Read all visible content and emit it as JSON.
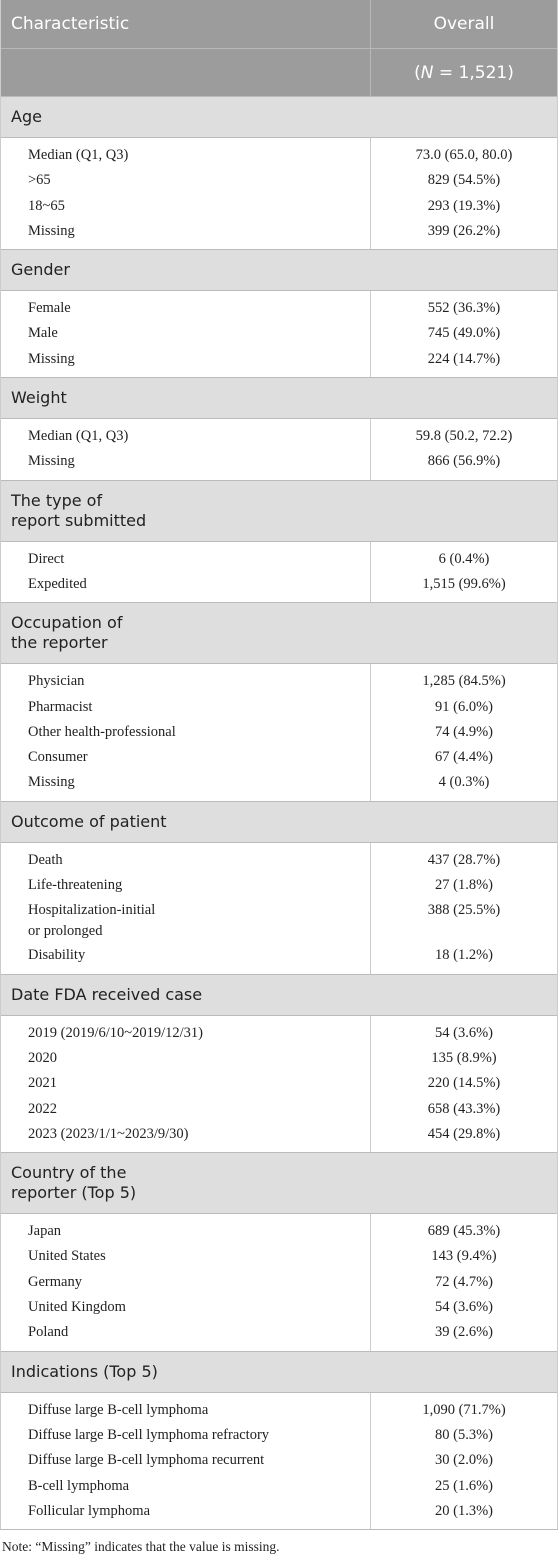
{
  "header": {
    "characteristic": "Characteristic",
    "overall": "Overall",
    "n_parts": [
      "(",
      "N",
      " = 1,521)"
    ]
  },
  "sections": [
    {
      "title": [
        "Age"
      ],
      "rows": [
        [
          "Median (Q1, Q3)",
          "73.0 (65.0, 80.0)"
        ],
        [
          ">65",
          "829 (54.5%)"
        ],
        [
          "18~65",
          "293 (19.3%)"
        ],
        [
          "Missing",
          "399 (26.2%)"
        ]
      ]
    },
    {
      "title": [
        "Gender"
      ],
      "rows": [
        [
          "Female",
          "552 (36.3%)"
        ],
        [
          "Male",
          "745 (49.0%)"
        ],
        [
          "Missing",
          "224 (14.7%)"
        ]
      ]
    },
    {
      "title": [
        "Weight"
      ],
      "rows": [
        [
          "Median (Q1, Q3)",
          "59.8 (50.2, 72.2)"
        ],
        [
          "Missing",
          "866 (56.9%)"
        ]
      ]
    },
    {
      "title": [
        "The type of",
        "report submitted"
      ],
      "rows": [
        [
          "Direct",
          "6 (0.4%)"
        ],
        [
          "Expedited",
          "1,515 (99.6%)"
        ]
      ]
    },
    {
      "title": [
        "Occupation of",
        "the reporter"
      ],
      "rows": [
        [
          "Physician",
          "1,285 (84.5%)"
        ],
        [
          "Pharmacist",
          "91 (6.0%)"
        ],
        [
          "Other health-professional",
          "74 (4.9%)"
        ],
        [
          "Consumer",
          "67 (4.4%)"
        ],
        [
          "Missing",
          "4 (0.3%)"
        ]
      ]
    },
    {
      "title": [
        "Outcome of patient"
      ],
      "rows": [
        [
          "Death",
          "437 (28.7%)"
        ],
        [
          "Life-threatening",
          "27 (1.8%)"
        ],
        [
          [
            "Hospitalization-initial",
            "or prolonged"
          ],
          "388 (25.5%)"
        ],
        [
          "Disability",
          "18 (1.2%)"
        ]
      ]
    },
    {
      "title": [
        "Date FDA received case"
      ],
      "rows": [
        [
          "2019 (2019/6/10~2019/12/31)",
          "54 (3.6%)"
        ],
        [
          "2020",
          "135 (8.9%)"
        ],
        [
          "2021",
          "220 (14.5%)"
        ],
        [
          "2022",
          "658 (43.3%)"
        ],
        [
          "2023 (2023/1/1~2023/9/30)",
          "454 (29.8%)"
        ]
      ]
    },
    {
      "title": [
        "Country of the",
        "reporter (Top 5)"
      ],
      "rows": [
        [
          "Japan",
          "689 (45.3%)"
        ],
        [
          "United States",
          "143 (9.4%)"
        ],
        [
          "Germany",
          "72 (4.7%)"
        ],
        [
          "United Kingdom",
          "54 (3.6%)"
        ],
        [
          "Poland",
          "39 (2.6%)"
        ]
      ]
    },
    {
      "title": [
        "Indications (Top 5)"
      ],
      "rows": [
        [
          "Diffuse large B-cell lymphoma",
          "1,090 (71.7%)"
        ],
        [
          "Diffuse large B-cell lymphoma refractory",
          "80 (5.3%)"
        ],
        [
          "Diffuse large B-cell lymphoma recurrent",
          "30 (2.0%)"
        ],
        [
          "B-cell lymphoma",
          "25 (1.6%)"
        ],
        [
          "Follicular lymphoma",
          "20 (1.3%)"
        ]
      ]
    }
  ],
  "note": "Note: “Missing” indicates that the value is missing."
}
